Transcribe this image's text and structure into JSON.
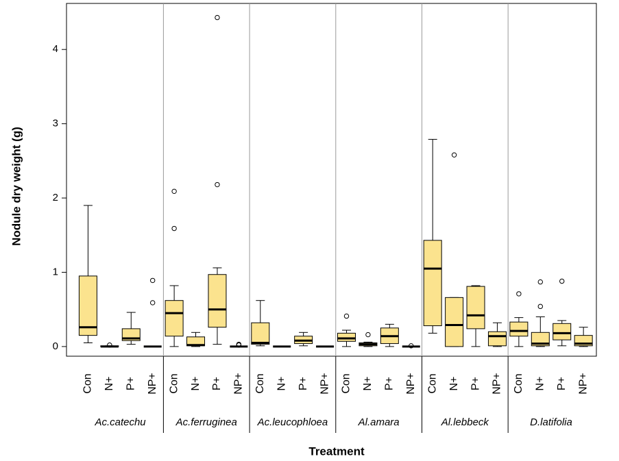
{
  "chart_data": {
    "type": "box",
    "ylabel": "Nodule dry weight (g)",
    "xlabel": "Treatment",
    "ylim": [
      -0.13,
      4.62
    ],
    "yticks": [
      0,
      1,
      2,
      3,
      4
    ],
    "color": "#fbe38e",
    "groups": [
      {
        "name": "Ac.catechu",
        "categories": [
          "Con",
          "N+",
          "P+",
          "NP+"
        ],
        "boxes": [
          {
            "whislo": 0.05,
            "q1": 0.15,
            "med": 0.26,
            "q3": 0.95,
            "whishi": 1.9,
            "fliers": []
          },
          {
            "whislo": 0,
            "q1": 0,
            "med": 0,
            "q3": 0.01,
            "whishi": 0.01,
            "fliers": [
              0.02
            ]
          },
          {
            "whislo": 0.03,
            "q1": 0.08,
            "med": 0.11,
            "q3": 0.24,
            "whishi": 0.46,
            "fliers": []
          },
          {
            "whislo": 0,
            "q1": 0,
            "med": 0,
            "q3": 0,
            "whishi": 0,
            "fliers": [
              0.89,
              0.59
            ]
          }
        ]
      },
      {
        "name": "Ac.ferruginea",
        "categories": [
          "Con",
          "N+",
          "P+",
          "NP+"
        ],
        "boxes": [
          {
            "whislo": 0,
            "q1": 0.14,
            "med": 0.45,
            "q3": 0.62,
            "whishi": 0.82,
            "fliers": [
              1.59,
              2.09
            ]
          },
          {
            "whislo": 0,
            "q1": 0.01,
            "med": 0.02,
            "q3": 0.13,
            "whishi": 0.19,
            "fliers": []
          },
          {
            "whislo": 0.03,
            "q1": 0.26,
            "med": 0.5,
            "q3": 0.97,
            "whishi": 1.06,
            "fliers": [
              2.18,
              4.43
            ]
          },
          {
            "whislo": 0,
            "q1": 0,
            "med": 0,
            "q3": 0,
            "whishi": 0,
            "fliers": [
              0.02,
              0.03
            ]
          }
        ]
      },
      {
        "name": "Ac.leucophloea",
        "categories": [
          "Con",
          "N+",
          "P+",
          "NP+"
        ],
        "boxes": [
          {
            "whislo": 0.01,
            "q1": 0.03,
            "med": 0.05,
            "q3": 0.32,
            "whishi": 0.62,
            "fliers": []
          },
          {
            "whislo": 0,
            "q1": 0,
            "med": 0,
            "q3": 0,
            "whishi": 0,
            "fliers": []
          },
          {
            "whislo": 0.01,
            "q1": 0.04,
            "med": 0.08,
            "q3": 0.14,
            "whishi": 0.19,
            "fliers": []
          },
          {
            "whislo": 0,
            "q1": 0,
            "med": 0,
            "q3": 0,
            "whishi": 0,
            "fliers": []
          }
        ]
      },
      {
        "name": "Al.amara",
        "categories": [
          "Con",
          "N+",
          "P+",
          "NP+"
        ],
        "boxes": [
          {
            "whislo": 0,
            "q1": 0.07,
            "med": 0.11,
            "q3": 0.18,
            "whishi": 0.22,
            "fliers": [
              0.41
            ]
          },
          {
            "whislo": 0,
            "q1": 0.01,
            "med": 0.03,
            "q3": 0.05,
            "whishi": 0.06,
            "fliers": [
              0.16
            ]
          },
          {
            "whislo": 0,
            "q1": 0.04,
            "med": 0.14,
            "q3": 0.25,
            "whishi": 0.3,
            "fliers": []
          },
          {
            "whislo": 0,
            "q1": 0,
            "med": 0,
            "q3": 0,
            "whishi": 0,
            "fliers": [
              0.01
            ]
          }
        ]
      },
      {
        "name": "Al.lebbeck",
        "categories": [
          "Con",
          "N+",
          "P+",
          "NP+"
        ],
        "boxes": [
          {
            "whislo": 0.18,
            "q1": 0.28,
            "med": 1.05,
            "q3": 1.43,
            "whishi": 2.79,
            "fliers": []
          },
          {
            "whislo": 0,
            "q1": 0,
            "med": 0.29,
            "q3": 0.66,
            "whishi": 0.66,
            "fliers": [
              2.58
            ]
          },
          {
            "whislo": 0,
            "q1": 0.24,
            "med": 0.42,
            "q3": 0.81,
            "whishi": 0.82,
            "fliers": []
          },
          {
            "whislo": 0,
            "q1": 0.01,
            "med": 0.14,
            "q3": 0.2,
            "whishi": 0.32,
            "fliers": []
          }
        ]
      },
      {
        "name": "D.latifolia",
        "categories": [
          "Con",
          "N+",
          "P+",
          "NP+"
        ],
        "boxes": [
          {
            "whislo": 0,
            "q1": 0.14,
            "med": 0.21,
            "q3": 0.33,
            "whishi": 0.39,
            "fliers": [
              0.71
            ]
          },
          {
            "whislo": 0,
            "q1": 0.01,
            "med": 0.04,
            "q3": 0.19,
            "whishi": 0.4,
            "fliers": [
              0.54,
              0.87
            ]
          },
          {
            "whislo": 0.01,
            "q1": 0.09,
            "med": 0.18,
            "q3": 0.31,
            "whishi": 0.35,
            "fliers": [
              0.88
            ]
          },
          {
            "whislo": 0,
            "q1": 0.01,
            "med": 0.04,
            "q3": 0.15,
            "whishi": 0.26,
            "fliers": []
          }
        ]
      }
    ]
  }
}
